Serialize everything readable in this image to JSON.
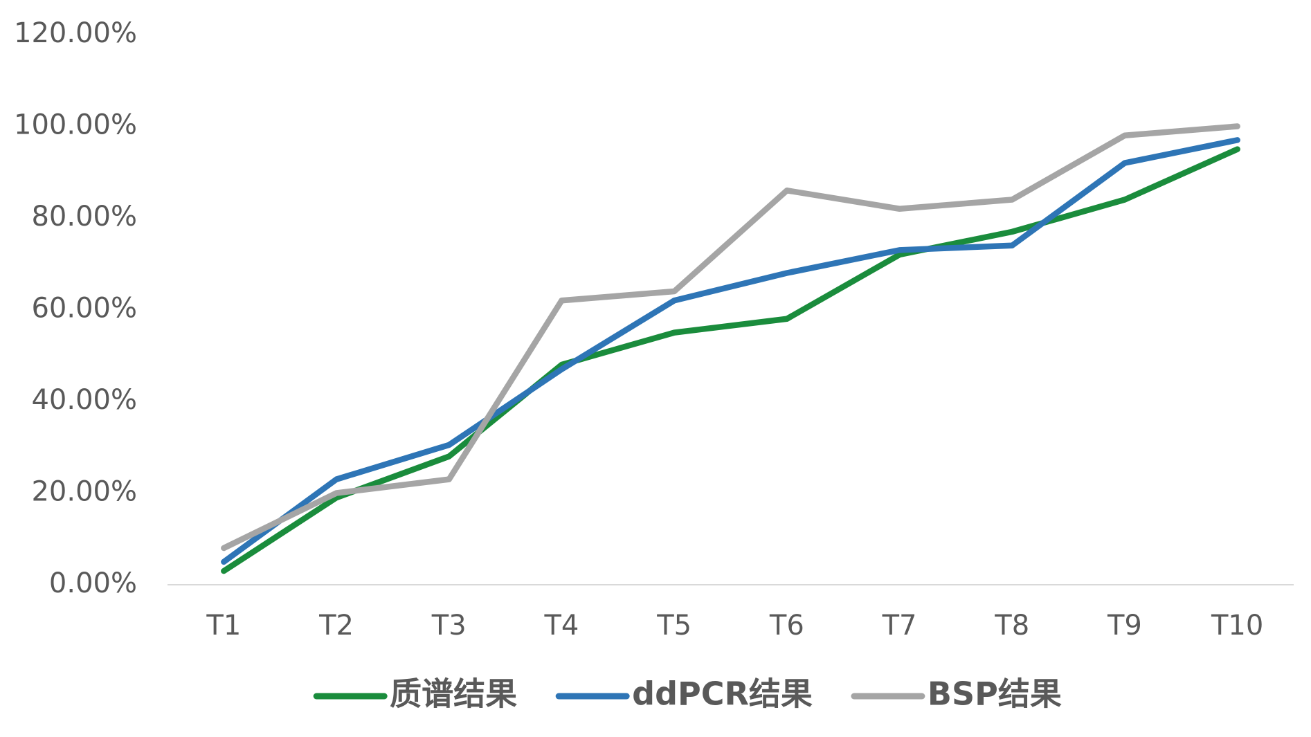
{
  "chart_data": {
    "type": "line",
    "categories": [
      "T1",
      "T2",
      "T3",
      "T4",
      "T5",
      "T6",
      "T7",
      "T8",
      "T9",
      "T10"
    ],
    "series": [
      {
        "name": "质谱结果",
        "color": "#1a8c3c",
        "values": [
          3,
          19,
          28,
          48,
          55,
          58,
          72,
          77,
          84,
          95
        ]
      },
      {
        "name": "ddPCR结果",
        "color": "#2e75b6",
        "values": [
          5,
          23,
          30.5,
          47,
          62,
          68,
          73,
          74,
          92,
          97
        ]
      },
      {
        "name": "BSP结果",
        "color": "#a5a5a5",
        "values": [
          8,
          20,
          23,
          62,
          64,
          86,
          82,
          84,
          98,
          100
        ]
      }
    ],
    "ylim": [
      0,
      120
    ],
    "yticks": [
      {
        "value": 0,
        "label": "0.00%"
      },
      {
        "value": 20,
        "label": "20.00%"
      },
      {
        "value": 40,
        "label": "40.00%"
      },
      {
        "value": 60,
        "label": "60.00%"
      },
      {
        "value": 80,
        "label": "80.00%"
      },
      {
        "value": 100,
        "label": "100.00%"
      },
      {
        "value": 120,
        "label": "120.00%"
      }
    ],
    "grid": false,
    "legend": "bottom"
  }
}
